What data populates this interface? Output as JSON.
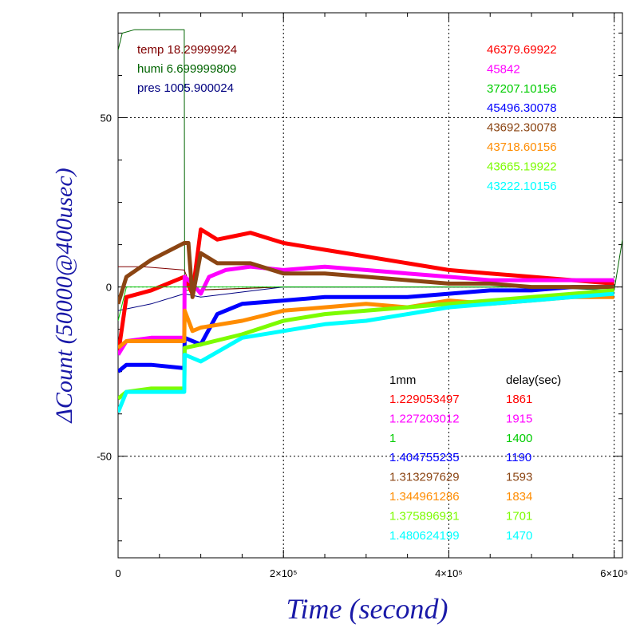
{
  "chart_data": {
    "type": "line",
    "xlabel": "Time (second)",
    "ylabel": "ΔCount (50000@400usec)",
    "xlim": [
      0,
      610000
    ],
    "ylim": [
      -80,
      81
    ],
    "grid": true,
    "x_ticks": [
      {
        "value": 0,
        "label": "0"
      },
      {
        "value": 200000,
        "label": "2×10⁵"
      },
      {
        "value": 400000,
        "label": "4×10⁵"
      },
      {
        "value": 600000,
        "label": "6×10⁵"
      }
    ],
    "y_ticks": [
      {
        "value": 50,
        "label": "50"
      },
      {
        "value": 0,
        "label": "0"
      },
      {
        "value": -50,
        "label": "-50"
      }
    ],
    "env_series": [
      {
        "name": "temp",
        "reading": "18.29999924",
        "color": "#800000"
      },
      {
        "name": "humi",
        "reading": "6.699999809",
        "color": "#006400"
      },
      {
        "name": "pres",
        "reading": "1005.900024",
        "color": "#000080"
      }
    ],
    "count_series": [
      {
        "baseline": "46379.69922",
        "ratio": "1.229053497",
        "delay": "1861",
        "color": "#ff0000",
        "points": [
          [
            0,
            -20
          ],
          [
            10000,
            -3
          ],
          [
            40000,
            -1
          ],
          [
            80000,
            3
          ],
          [
            90000,
            -2
          ],
          [
            100000,
            17
          ],
          [
            120000,
            14
          ],
          [
            140000,
            15
          ],
          [
            160000,
            16
          ],
          [
            200000,
            13
          ],
          [
            250000,
            11
          ],
          [
            300000,
            9
          ],
          [
            350000,
            7
          ],
          [
            400000,
            5
          ],
          [
            450000,
            4
          ],
          [
            500000,
            3
          ],
          [
            550000,
            2
          ],
          [
            600000,
            1
          ]
        ]
      },
      {
        "baseline": "45842",
        "ratio": "1.227203012",
        "delay": "1915",
        "color": "#ff00ff",
        "points": [
          [
            0,
            -20
          ],
          [
            10000,
            -16
          ],
          [
            40000,
            -15
          ],
          [
            80000,
            -15
          ],
          [
            80500,
            3
          ],
          [
            90000,
            1
          ],
          [
            100000,
            -2
          ],
          [
            110000,
            3
          ],
          [
            130000,
            5
          ],
          [
            160000,
            6
          ],
          [
            200000,
            5
          ],
          [
            250000,
            6
          ],
          [
            300000,
            5
          ],
          [
            350000,
            4
          ],
          [
            400000,
            3
          ],
          [
            450000,
            2
          ],
          [
            500000,
            2
          ],
          [
            550000,
            2
          ],
          [
            600000,
            2
          ]
        ]
      },
      {
        "baseline": "37207.10156",
        "ratio": "1",
        "delay": "1400",
        "color": "#00cc00",
        "points": [
          [
            0,
            -10
          ],
          [
            10000,
            0
          ],
          [
            600000,
            0
          ]
        ]
      },
      {
        "baseline": "45496.30078",
        "ratio": "1.404755235",
        "delay": "1190",
        "color": "#0000ff",
        "points": [
          [
            0,
            -25
          ],
          [
            10000,
            -23
          ],
          [
            40000,
            -23
          ],
          [
            80000,
            -24
          ],
          [
            80500,
            -15
          ],
          [
            100000,
            -17
          ],
          [
            120000,
            -8
          ],
          [
            150000,
            -5
          ],
          [
            200000,
            -4
          ],
          [
            250000,
            -3
          ],
          [
            300000,
            -3
          ],
          [
            350000,
            -3
          ],
          [
            400000,
            -2
          ],
          [
            450000,
            -1
          ],
          [
            500000,
            -1
          ],
          [
            550000,
            0
          ],
          [
            600000,
            0
          ]
        ]
      },
      {
        "baseline": "43692.30078",
        "ratio": "1.313297629",
        "delay": "1593",
        "color": "#8b4513",
        "points": [
          [
            0,
            -5
          ],
          [
            10000,
            3
          ],
          [
            40000,
            8
          ],
          [
            80000,
            13
          ],
          [
            85000,
            13
          ],
          [
            90000,
            -3
          ],
          [
            100000,
            10
          ],
          [
            120000,
            7
          ],
          [
            160000,
            7
          ],
          [
            200000,
            4
          ],
          [
            250000,
            4
          ],
          [
            300000,
            3
          ],
          [
            350000,
            2
          ],
          [
            400000,
            1
          ],
          [
            450000,
            1
          ],
          [
            500000,
            0
          ],
          [
            550000,
            0
          ],
          [
            600000,
            0
          ]
        ]
      },
      {
        "baseline": "43718.60156",
        "ratio": "1.344961286",
        "delay": "1834",
        "color": "#ff8c00",
        "points": [
          [
            0,
            -18
          ],
          [
            10000,
            -16
          ],
          [
            40000,
            -16
          ],
          [
            80000,
            -16
          ],
          [
            80500,
            -7
          ],
          [
            90000,
            -13
          ],
          [
            100000,
            -12
          ],
          [
            150000,
            -10
          ],
          [
            200000,
            -7
          ],
          [
            250000,
            -6
          ],
          [
            300000,
            -5
          ],
          [
            350000,
            -6
          ],
          [
            400000,
            -4
          ],
          [
            450000,
            -5
          ],
          [
            500000,
            -4
          ],
          [
            550000,
            -3
          ],
          [
            600000,
            -3
          ]
        ]
      },
      {
        "baseline": "43665.19922",
        "ratio": "1.375896931",
        "delay": "1701",
        "color": "#7cfc00",
        "points": [
          [
            0,
            -33
          ],
          [
            10000,
            -31
          ],
          [
            40000,
            -30
          ],
          [
            80000,
            -30
          ],
          [
            80500,
            -18
          ],
          [
            100000,
            -17
          ],
          [
            150000,
            -14
          ],
          [
            200000,
            -10
          ],
          [
            250000,
            -8
          ],
          [
            300000,
            -7
          ],
          [
            350000,
            -6
          ],
          [
            400000,
            -5
          ],
          [
            450000,
            -4
          ],
          [
            500000,
            -3
          ],
          [
            550000,
            -2
          ],
          [
            600000,
            -1
          ]
        ]
      },
      {
        "baseline": "43222.10156",
        "ratio": "1.480624199",
        "delay": "1470",
        "color": "#00ffff",
        "points": [
          [
            0,
            -37
          ],
          [
            10000,
            -31
          ],
          [
            40000,
            -31
          ],
          [
            80000,
            -31
          ],
          [
            80500,
            -20
          ],
          [
            100000,
            -22
          ],
          [
            150000,
            -15
          ],
          [
            200000,
            -13
          ],
          [
            250000,
            -11
          ],
          [
            300000,
            -10
          ],
          [
            350000,
            -8
          ],
          [
            400000,
            -6
          ],
          [
            450000,
            -5
          ],
          [
            500000,
            -4
          ],
          [
            550000,
            -3
          ],
          [
            600000,
            -2
          ]
        ]
      }
    ],
    "humi_trace": [
      [
        0,
        70
      ],
      [
        5000,
        75
      ],
      [
        20000,
        76
      ],
      [
        80000,
        76
      ],
      [
        80500,
        -1
      ],
      [
        200000,
        0
      ],
      [
        300000,
        0
      ],
      [
        400000,
        0
      ],
      [
        500000,
        0
      ],
      [
        600000,
        -1
      ],
      [
        610000,
        14
      ]
    ],
    "temp_trace_desc_note": "",
    "temp_trace": [
      [
        0,
        6
      ],
      [
        30000,
        6
      ],
      [
        80000,
        5
      ],
      [
        90000,
        -1
      ],
      [
        200000,
        0
      ],
      [
        300000,
        0
      ],
      [
        400000,
        0
      ],
      [
        500000,
        0
      ],
      [
        600000,
        0
      ]
    ],
    "pres_trace": [
      [
        0,
        -7
      ],
      [
        40000,
        -5
      ],
      [
        80000,
        -2
      ],
      [
        100000,
        -3
      ],
      [
        200000,
        0
      ],
      [
        300000,
        0
      ],
      [
        400000,
        0
      ],
      [
        500000,
        0
      ],
      [
        600000,
        0
      ]
    ],
    "col_headers": {
      "ratio": "1mm",
      "delay": "delay(sec)"
    }
  }
}
